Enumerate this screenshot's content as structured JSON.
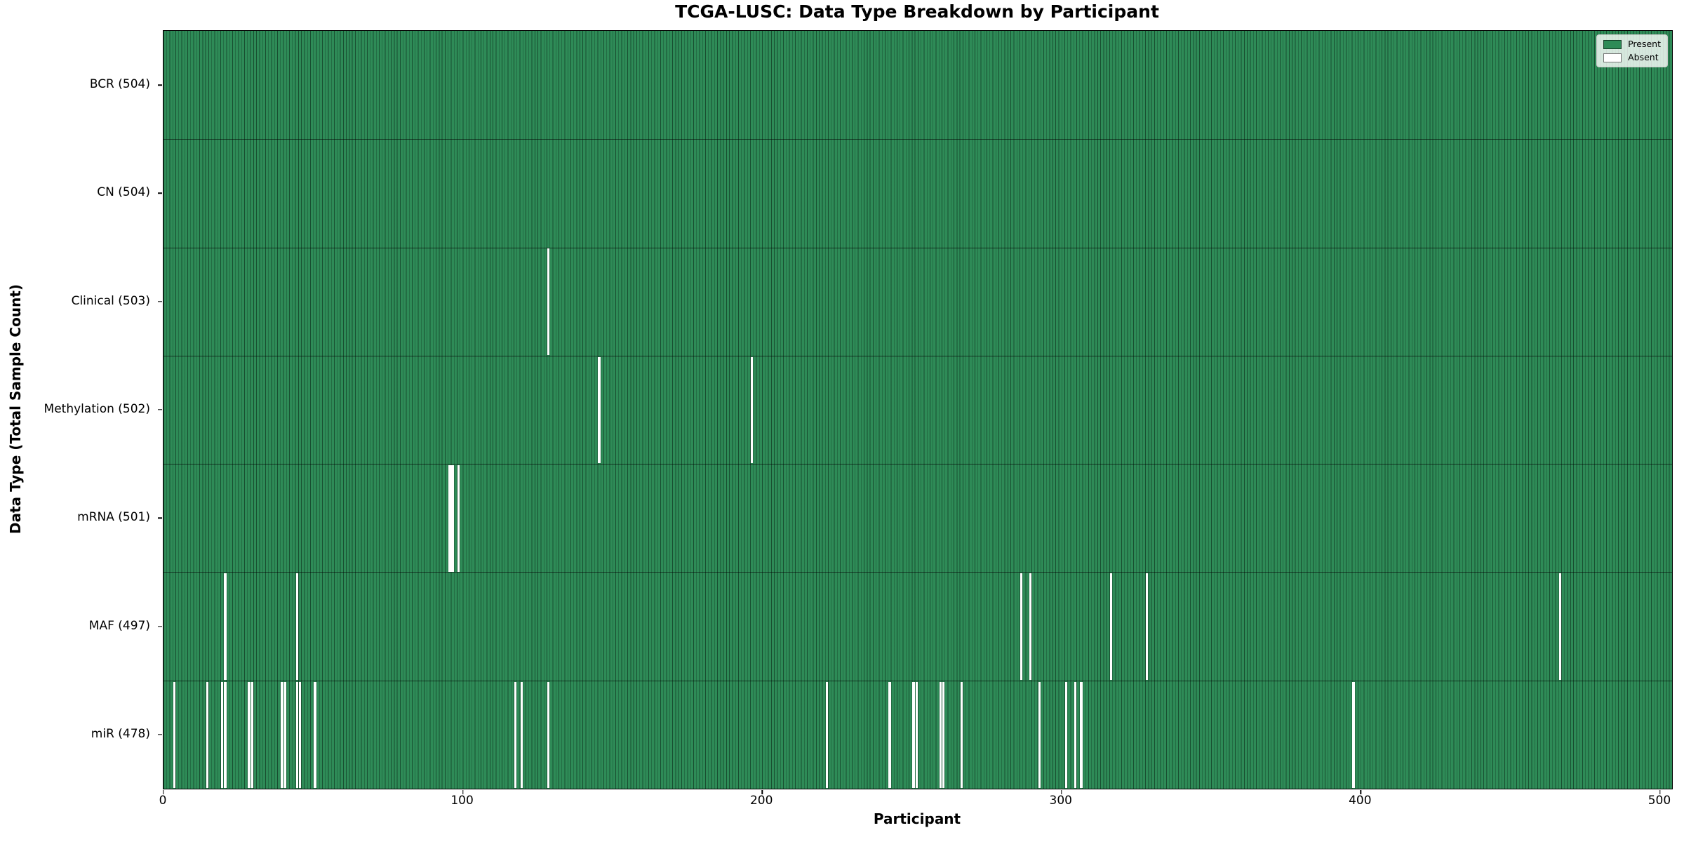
{
  "chart_data": {
    "type": "heatmap",
    "title": "TCGA-LUSC: Data Type Breakdown by Participant",
    "xlabel": "Participant",
    "ylabel": "Data Type (Total Sample Count)",
    "n_participants": 504,
    "xlim": [
      0,
      504
    ],
    "x_ticks": [
      0,
      100,
      200,
      300,
      400,
      500
    ],
    "grid": false,
    "legend_position": "upper right",
    "legend": {
      "present": "Present",
      "absent": "Absent"
    },
    "colors": {
      "present": "#2e8b57",
      "absent": "#ffffff"
    },
    "cell_states": {
      "present": 1,
      "absent": 0
    },
    "rows": [
      {
        "label": "BCR",
        "total": 504,
        "absent_participants": []
      },
      {
        "label": "CN",
        "total": 504,
        "absent_participants": []
      },
      {
        "label": "Clinical",
        "total": 503,
        "absent_participants": [
          128
        ]
      },
      {
        "label": "Methylation",
        "total": 502,
        "absent_participants": [
          145,
          196
        ]
      },
      {
        "label": "mRNA",
        "total": 501,
        "absent_participants": [
          95,
          96,
          98
        ]
      },
      {
        "label": "MAF",
        "total": 497,
        "absent_participants": [
          20,
          44,
          286,
          289,
          316,
          328,
          466
        ]
      },
      {
        "label": "miR",
        "total": 478,
        "absent_participants": [
          3,
          14,
          19,
          20,
          28,
          29,
          39,
          40,
          44,
          45,
          50,
          117,
          119,
          128,
          221,
          242,
          250,
          251,
          259,
          260,
          266,
          292,
          301,
          304,
          306,
          397
        ]
      }
    ]
  }
}
